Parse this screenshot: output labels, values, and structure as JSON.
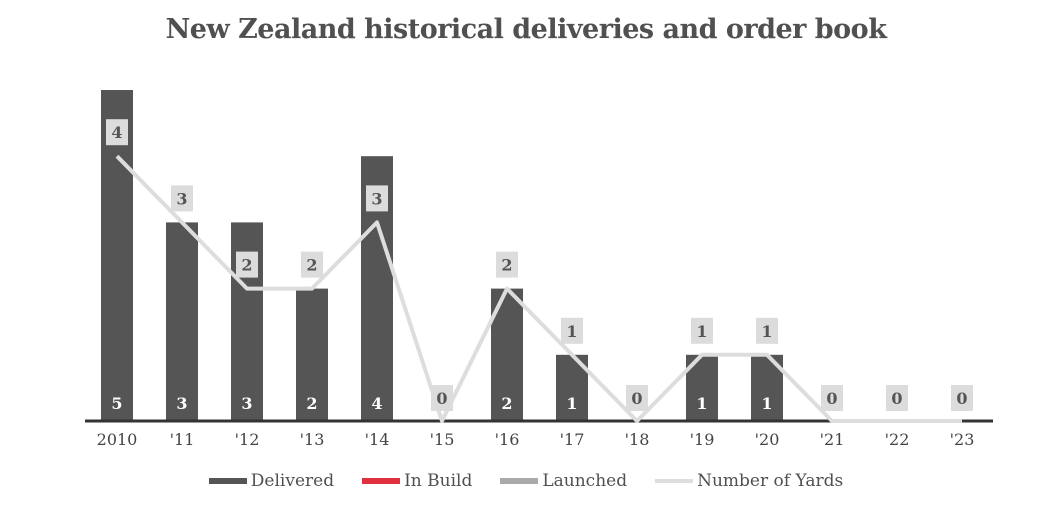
{
  "chart_data": {
    "type": "bar",
    "title": "New Zealand historical deliveries and order book",
    "categories": [
      "2010",
      "'11",
      "'12",
      "'13",
      "'14",
      "'15",
      "'16",
      "'17",
      "'18",
      "'19",
      "'20",
      "'21",
      "'22",
      "'23"
    ],
    "series": [
      {
        "name": "Delivered",
        "type": "bar",
        "color": "#555555",
        "values": [
          5,
          3,
          3,
          2,
          4,
          0,
          2,
          1,
          0,
          1,
          1,
          0,
          0,
          0
        ]
      },
      {
        "name": "In Build",
        "type": "bar",
        "color": "#e03040",
        "values": [
          0,
          0,
          0,
          0,
          0,
          0,
          0,
          0,
          0,
          0,
          0,
          0,
          0,
          0
        ]
      },
      {
        "name": "Launched",
        "type": "bar",
        "color": "#aaaaaa",
        "values": [
          0,
          0,
          0,
          0,
          0,
          0,
          0,
          0,
          0,
          0,
          0,
          0,
          0,
          0
        ]
      },
      {
        "name": "Number of Yards",
        "type": "line",
        "color": "#dddddd",
        "values": [
          4,
          3,
          2,
          2,
          3,
          0,
          2,
          1,
          0,
          1,
          1,
          0,
          0,
          0
        ]
      }
    ],
    "ylim": [
      0,
      5
    ],
    "xlabel": "",
    "ylabel": "",
    "grid": false,
    "legend": "bottom-center"
  }
}
